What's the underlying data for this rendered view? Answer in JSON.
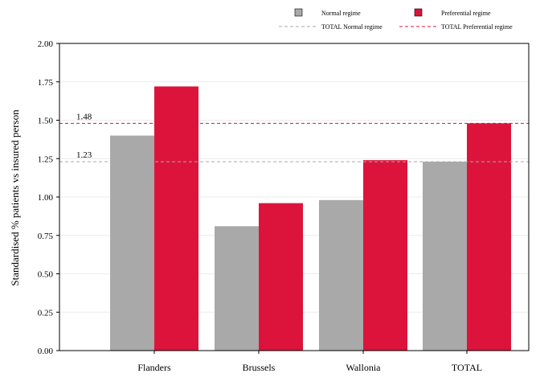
{
  "chart_data": {
    "type": "bar",
    "categories": [
      "Flanders",
      "Brussels",
      "Wallonia",
      "TOTAL"
    ],
    "series": [
      {
        "name": "Normal regime",
        "values": [
          1.4,
          0.81,
          0.98,
          1.23
        ],
        "color": "#a9a9a9"
      },
      {
        "name": "Preferential regime",
        "values": [
          1.72,
          0.96,
          1.24,
          1.48
        ],
        "color": "#dc143c"
      }
    ],
    "reference_lines": [
      {
        "name": "TOTAL Normal regime",
        "value": 1.23,
        "label": "1.23",
        "color": "#a9a9a9",
        "style": "dashed"
      },
      {
        "name": "TOTAL Preferential regime",
        "value": 1.48,
        "label": "1.48",
        "color": "#dc143c",
        "style": "dashed"
      }
    ],
    "ylabel": "Standardised % patients vs insured person",
    "xlabel": "",
    "ylim": [
      0,
      2
    ],
    "yticks": [
      "0.00",
      "0.25",
      "0.50",
      "0.75",
      "1.00",
      "1.25",
      "1.50",
      "1.75",
      "2.00"
    ],
    "grid": true,
    "legend_position": "top"
  }
}
